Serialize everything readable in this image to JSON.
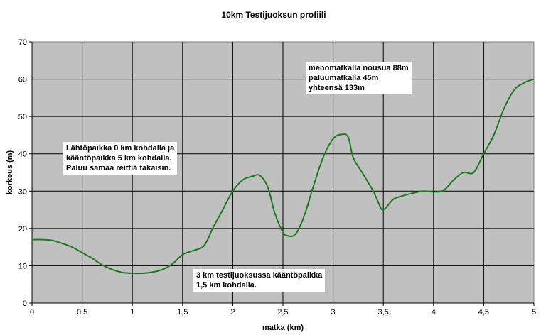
{
  "chart_data": {
    "type": "line",
    "title": "10km Testijuoksun profiili",
    "xlabel": "matka (km)",
    "ylabel": "korkeus (m)",
    "xlim": [
      0,
      5
    ],
    "ylim": [
      0,
      70
    ],
    "xticks": [
      "0",
      "0,5",
      "1",
      "1,5",
      "2",
      "2,5",
      "3",
      "3,5",
      "4",
      "4,5",
      "5"
    ],
    "yticks": [
      "0",
      "10",
      "20",
      "30",
      "40",
      "50",
      "60",
      "70"
    ],
    "grid": true,
    "plot_background": "#c0c0c0",
    "series": [
      {
        "color": "#1e7a1e",
        "x": [
          0,
          0.1,
          0.2,
          0.3,
          0.4,
          0.5,
          0.6,
          0.7,
          0.8,
          0.9,
          1.0,
          1.1,
          1.2,
          1.3,
          1.4,
          1.5,
          1.6,
          1.7,
          1.75,
          1.8,
          1.9,
          2.0,
          2.1,
          2.2,
          2.27,
          2.35,
          2.42,
          2.5,
          2.55,
          2.6,
          2.65,
          2.72,
          2.8,
          2.9,
          3.0,
          3.08,
          3.15,
          3.2,
          3.3,
          3.4,
          3.45,
          3.5,
          3.6,
          3.7,
          3.8,
          3.9,
          4.0,
          4.1,
          4.2,
          4.3,
          4.4,
          4.5,
          4.6,
          4.7,
          4.8,
          4.9,
          5.0
        ],
        "y": [
          17,
          17,
          16.8,
          16,
          15,
          13.5,
          12,
          10.2,
          9,
          8.2,
          8,
          8,
          8.3,
          9,
          10.5,
          13,
          14,
          15,
          17,
          20,
          25,
          30,
          33,
          34,
          34.2,
          31,
          24,
          19,
          18,
          18,
          19.5,
          24,
          31,
          39,
          44,
          45.2,
          44.5,
          39,
          34.5,
          30,
          27,
          25,
          27.8,
          28.8,
          29.5,
          30,
          29.8,
          30.2,
          33,
          35,
          35,
          40,
          45,
          52,
          57,
          59,
          60
        ]
      }
    ]
  },
  "annotations": {
    "ascent_note": "menomatkalla nousua 88m\npaluumatkalla 45m\nyhteensä 133m",
    "start_note": "Lähtöpaikka 0 km kohdalla ja\nkääntöpaikka 5 km kohdalla.\nPaluu samaa reittiä takaisin.",
    "turn_note": "3 km testijuoksussa kääntöpaikka\n1,5 km kohdalla."
  }
}
